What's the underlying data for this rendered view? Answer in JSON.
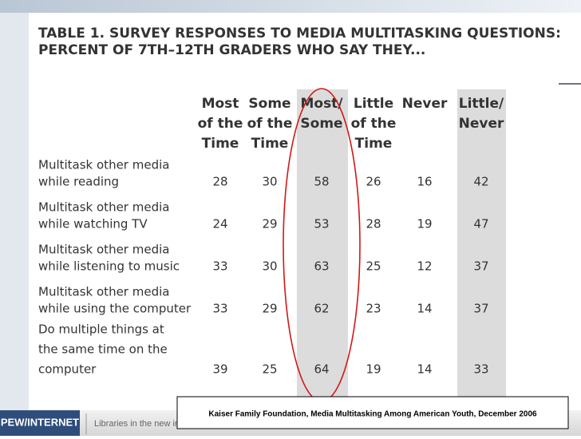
{
  "table": {
    "title": [
      "TABLE 1.  SURVEY RESPONSES TO MEDIA MULTITASKING QUESTIONS:",
      "PERCENT OF 7TH–12TH GRADERS WHO SAY THEY..."
    ],
    "columns": [
      [
        "Most",
        "of the",
        "Time"
      ],
      [
        "Some",
        "of the",
        "Time"
      ],
      [
        "Most/",
        "Some"
      ],
      [
        "Little",
        "of the",
        "Time"
      ],
      [
        "Never"
      ],
      [
        "Little/",
        "Never"
      ]
    ],
    "rows": [
      {
        "label": [
          "Multitask other media",
          "while reading"
        ],
        "values": [
          28,
          30,
          58,
          26,
          16,
          42
        ]
      },
      {
        "label": [
          "Multitask other media",
          "while watching TV"
        ],
        "values": [
          24,
          29,
          53,
          28,
          19,
          47
        ]
      },
      {
        "label": [
          "Multitask other media",
          "while listening to music"
        ],
        "values": [
          33,
          30,
          63,
          25,
          12,
          37
        ]
      },
      {
        "label": [
          "Multitask other media",
          "while using the computer"
        ],
        "values": [
          33,
          29,
          62,
          23,
          14,
          37
        ]
      },
      {
        "label": [
          "Do multiple things at",
          "the same time on the",
          "computer"
        ],
        "values": [
          39,
          25,
          64,
          19,
          14,
          33
        ]
      }
    ]
  },
  "footer": {
    "logo": "PEW/INTERNET",
    "slide_title": "Libraries in the new info",
    "source": "Kaiser Family Foundation, Media Multitasking Among American Youth, December 2006"
  }
}
